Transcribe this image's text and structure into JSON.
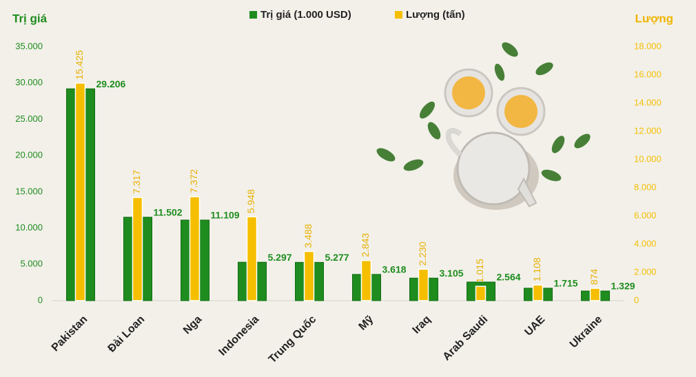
{
  "chart_data": {
    "type": "bar",
    "y_label": "Trị giá",
    "y2_label": "Lượng",
    "categories": [
      "Pakistan",
      "Đài Loan",
      "Nga",
      "Indonesia",
      "Trung Quốc",
      "Mỹ",
      "Iraq",
      "Arab Saudi",
      "UAE",
      "Ukraine"
    ],
    "series": [
      {
        "name": "Trị giá (1.000 USD)",
        "color": "#1e8c1e",
        "axis": "y",
        "values": [
          29206,
          11502,
          11109,
          5297,
          5277,
          3618,
          3105,
          2564,
          1715,
          1329
        ],
        "value_labels": [
          "29.206",
          "11.502",
          "11.109",
          "5.297",
          "5.277",
          "3.618",
          "3.105",
          "2.564",
          "1.715",
          "1.329"
        ]
      },
      {
        "name": "Lượng (tấn)",
        "color": "#f5bf00",
        "axis": "y2",
        "values": [
          15425,
          7317,
          7372,
          5948,
          3488,
          2843,
          2230,
          1015,
          1108,
          874
        ],
        "value_labels": [
          "15.425",
          "7.317",
          "7.372",
          "5.948",
          "3.488",
          "2.843",
          "2.230",
          "1.015",
          "1.108",
          "874"
        ]
      }
    ],
    "ylim": [
      0,
      35000
    ],
    "yticks": [
      0,
      {
        "value": 5000,
        "label": "5.000"
      },
      {
        "value": 10000,
        "label": "10.000"
      },
      {
        "value": 15000,
        "label": "15.000"
      },
      {
        "value": 20000,
        "label": "20.000"
      },
      {
        "value": 25000,
        "label": "25.000"
      },
      {
        "value": 30000,
        "label": "30.000"
      },
      {
        "value": 35000,
        "label": "35.000"
      }
    ],
    "y2lim": [
      0,
      18000
    ],
    "y2ticks": [
      0,
      {
        "value": 2000,
        "label": "2.000"
      },
      {
        "value": 4000,
        "label": "4.000"
      },
      {
        "value": 6000,
        "label": "6.000"
      },
      {
        "value": 8000,
        "label": "8.000"
      },
      {
        "value": 10000,
        "label": "10.000"
      },
      {
        "value": 12000,
        "label": "12.000"
      },
      {
        "value": 14000,
        "label": "14.000"
      },
      {
        "value": 16000,
        "label": "16.000"
      },
      {
        "value": 18000,
        "label": "18.000"
      }
    ],
    "grid": false,
    "legend": "top"
  }
}
